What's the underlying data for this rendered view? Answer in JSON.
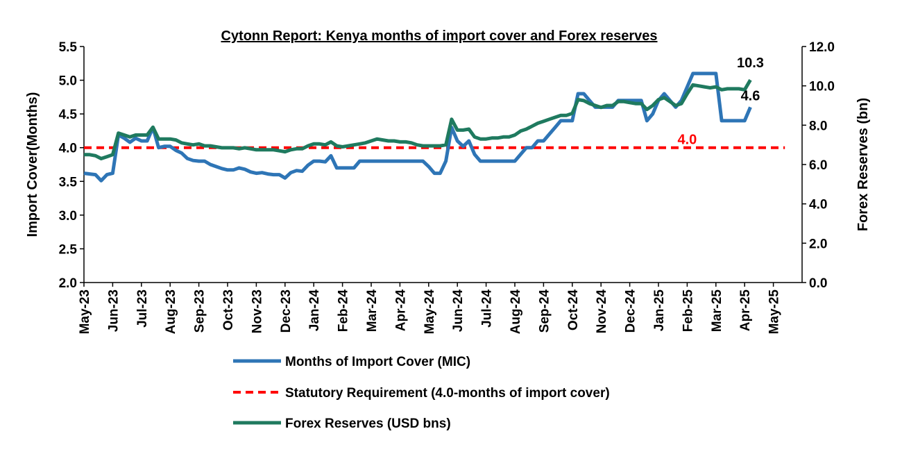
{
  "chart_data": {
    "type": "line",
    "title": "Cytonn Report: Kenya months of import cover and Forex reserves",
    "y_left_label": "Import Cover(Months)",
    "y_right_label": "Forex Reserves (bn)",
    "y_left_range": [
      2.0,
      5.5
    ],
    "y_right_range": [
      0.0,
      12.0
    ],
    "y_left_ticks": [
      "2.0",
      "2.5",
      "3.0",
      "3.5",
      "4.0",
      "4.5",
      "5.0",
      "5.5"
    ],
    "y_right_ticks": [
      "0.0",
      "2.0",
      "4.0",
      "6.0",
      "8.0",
      "10.0",
      "12.0"
    ],
    "x_tick_labels": [
      "May-23",
      "Jun-23",
      "Jul-23",
      "Aug-23",
      "Sep-23",
      "Oct-23",
      "Nov-23",
      "Dec-23",
      "Jan-24",
      "Feb-24",
      "Mar-24",
      "Apr-24",
      "May-24",
      "Jun-24",
      "Jul-24",
      "Aug-24",
      "Sep-24",
      "Oct-24",
      "Nov-24",
      "Dec-24",
      "Jan-25",
      "Feb-25",
      "Mar-25",
      "Apr-25",
      "May-25"
    ],
    "x_ticks_months": [
      0,
      1,
      2,
      3,
      4,
      5,
      6,
      7,
      8,
      9,
      10,
      11,
      12,
      13,
      14,
      15,
      16,
      17,
      18,
      19,
      20,
      21,
      22,
      23,
      24
    ],
    "grid": false,
    "legend_placement": "bottom",
    "series": [
      {
        "name": "Months of Import Cover (MIC)",
        "axis": "left",
        "color": "#2E75B6",
        "style": "solid",
        "points": [
          [
            0.0,
            3.62
          ],
          [
            0.2,
            3.61
          ],
          [
            0.4,
            3.6
          ],
          [
            0.6,
            3.51
          ],
          [
            0.8,
            3.6
          ],
          [
            1.0,
            3.62
          ],
          [
            1.2,
            4.19
          ],
          [
            1.4,
            4.14
          ],
          [
            1.6,
            4.08
          ],
          [
            1.8,
            4.14
          ],
          [
            2.0,
            4.1
          ],
          [
            2.2,
            4.1
          ],
          [
            2.4,
            4.3
          ],
          [
            2.6,
            4.0
          ],
          [
            2.8,
            4.02
          ],
          [
            3.0,
            4.02
          ],
          [
            3.2,
            3.96
          ],
          [
            3.4,
            3.92
          ],
          [
            3.6,
            3.84
          ],
          [
            3.8,
            3.81
          ],
          [
            4.0,
            3.8
          ],
          [
            4.2,
            3.8
          ],
          [
            4.4,
            3.75
          ],
          [
            4.6,
            3.72
          ],
          [
            4.8,
            3.69
          ],
          [
            5.0,
            3.67
          ],
          [
            5.2,
            3.67
          ],
          [
            5.4,
            3.7
          ],
          [
            5.6,
            3.68
          ],
          [
            5.8,
            3.64
          ],
          [
            6.0,
            3.62
          ],
          [
            6.2,
            3.63
          ],
          [
            6.4,
            3.61
          ],
          [
            6.6,
            3.6
          ],
          [
            6.8,
            3.6
          ],
          [
            7.0,
            3.55
          ],
          [
            7.2,
            3.63
          ],
          [
            7.4,
            3.66
          ],
          [
            7.6,
            3.65
          ],
          [
            7.8,
            3.74
          ],
          [
            8.0,
            3.8
          ],
          [
            8.2,
            3.8
          ],
          [
            8.4,
            3.79
          ],
          [
            8.6,
            3.88
          ],
          [
            8.8,
            3.7
          ],
          [
            9.0,
            3.7
          ],
          [
            9.2,
            3.7
          ],
          [
            9.4,
            3.7
          ],
          [
            9.6,
            3.8
          ],
          [
            9.8,
            3.8
          ],
          [
            10.0,
            3.8
          ],
          [
            10.2,
            3.8
          ],
          [
            10.4,
            3.8
          ],
          [
            10.6,
            3.8
          ],
          [
            10.8,
            3.8
          ],
          [
            11.0,
            3.8
          ],
          [
            11.2,
            3.8
          ],
          [
            11.4,
            3.8
          ],
          [
            11.6,
            3.8
          ],
          [
            11.8,
            3.8
          ],
          [
            12.0,
            3.72
          ],
          [
            12.2,
            3.62
          ],
          [
            12.4,
            3.62
          ],
          [
            12.6,
            3.8
          ],
          [
            12.8,
            4.3
          ],
          [
            13.0,
            4.1
          ],
          [
            13.2,
            4.02
          ],
          [
            13.4,
            4.1
          ],
          [
            13.6,
            3.9
          ],
          [
            13.8,
            3.8
          ],
          [
            14.0,
            3.8
          ],
          [
            14.2,
            3.8
          ],
          [
            14.4,
            3.8
          ],
          [
            14.6,
            3.8
          ],
          [
            14.8,
            3.8
          ],
          [
            15.0,
            3.8
          ],
          [
            15.2,
            3.9
          ],
          [
            15.4,
            4.0
          ],
          [
            15.6,
            4.0
          ],
          [
            15.8,
            4.1
          ],
          [
            16.0,
            4.1
          ],
          [
            16.2,
            4.2
          ],
          [
            16.4,
            4.3
          ],
          [
            16.6,
            4.4
          ],
          [
            16.8,
            4.4
          ],
          [
            17.0,
            4.4
          ],
          [
            17.2,
            4.8
          ],
          [
            17.4,
            4.8
          ],
          [
            17.6,
            4.7
          ],
          [
            17.8,
            4.6
          ],
          [
            18.0,
            4.6
          ],
          [
            18.2,
            4.6
          ],
          [
            18.4,
            4.6
          ],
          [
            18.6,
            4.7
          ],
          [
            18.8,
            4.7
          ],
          [
            19.0,
            4.7
          ],
          [
            19.2,
            4.7
          ],
          [
            19.4,
            4.7
          ],
          [
            19.6,
            4.4
          ],
          [
            19.8,
            4.5
          ],
          [
            20.0,
            4.7
          ],
          [
            20.2,
            4.8
          ],
          [
            20.4,
            4.7
          ],
          [
            20.6,
            4.6
          ],
          [
            20.8,
            4.7
          ],
          [
            21.0,
            4.9
          ],
          [
            21.2,
            5.1
          ],
          [
            21.4,
            5.1
          ],
          [
            21.6,
            5.1
          ],
          [
            21.8,
            5.1
          ],
          [
            22.0,
            5.1
          ],
          [
            22.2,
            4.4
          ],
          [
            22.4,
            4.4
          ],
          [
            22.6,
            4.4
          ],
          [
            22.8,
            4.4
          ],
          [
            23.0,
            4.4
          ],
          [
            23.2,
            4.6
          ]
        ]
      },
      {
        "name": "Statutory Requirement (4.0-months of import cover)",
        "axis": "left",
        "color": "#FF0000",
        "style": "dashed",
        "points": [
          [
            0.0,
            4.0
          ],
          [
            24.4,
            4.0
          ]
        ]
      },
      {
        "name": "Forex Reserves (USD bns)",
        "axis": "right",
        "color": "#1F7A5F",
        "style": "solid",
        "points": [
          [
            0.0,
            6.5
          ],
          [
            0.2,
            6.5
          ],
          [
            0.4,
            6.45
          ],
          [
            0.6,
            6.3
          ],
          [
            0.8,
            6.4
          ],
          [
            1.0,
            6.5
          ],
          [
            1.2,
            7.6
          ],
          [
            1.4,
            7.5
          ],
          [
            1.6,
            7.4
          ],
          [
            1.8,
            7.5
          ],
          [
            2.0,
            7.5
          ],
          [
            2.2,
            7.5
          ],
          [
            2.4,
            7.9
          ],
          [
            2.6,
            7.3
          ],
          [
            2.8,
            7.3
          ],
          [
            3.0,
            7.3
          ],
          [
            3.2,
            7.25
          ],
          [
            3.4,
            7.1
          ],
          [
            3.6,
            7.05
          ],
          [
            3.8,
            7.0
          ],
          [
            4.0,
            7.05
          ],
          [
            4.2,
            6.95
          ],
          [
            4.4,
            6.95
          ],
          [
            4.6,
            6.9
          ],
          [
            4.8,
            6.85
          ],
          [
            5.0,
            6.85
          ],
          [
            5.2,
            6.85
          ],
          [
            5.4,
            6.8
          ],
          [
            5.6,
            6.85
          ],
          [
            5.8,
            6.8
          ],
          [
            6.0,
            6.75
          ],
          [
            6.2,
            6.75
          ],
          [
            6.4,
            6.75
          ],
          [
            6.6,
            6.75
          ],
          [
            6.8,
            6.7
          ],
          [
            7.0,
            6.65
          ],
          [
            7.2,
            6.75
          ],
          [
            7.4,
            6.8
          ],
          [
            7.6,
            6.8
          ],
          [
            7.8,
            6.95
          ],
          [
            8.0,
            7.05
          ],
          [
            8.2,
            7.05
          ],
          [
            8.4,
            7.0
          ],
          [
            8.6,
            7.15
          ],
          [
            8.8,
            6.95
          ],
          [
            9.0,
            6.9
          ],
          [
            9.2,
            6.95
          ],
          [
            9.4,
            7.0
          ],
          [
            9.6,
            7.05
          ],
          [
            9.8,
            7.1
          ],
          [
            10.0,
            7.2
          ],
          [
            10.2,
            7.3
          ],
          [
            10.4,
            7.25
          ],
          [
            10.6,
            7.2
          ],
          [
            10.8,
            7.2
          ],
          [
            11.0,
            7.15
          ],
          [
            11.2,
            7.15
          ],
          [
            11.4,
            7.1
          ],
          [
            11.6,
            7.0
          ],
          [
            11.8,
            6.95
          ],
          [
            12.0,
            6.95
          ],
          [
            12.2,
            6.95
          ],
          [
            12.4,
            6.95
          ],
          [
            12.6,
            7.0
          ],
          [
            12.8,
            8.3
          ],
          [
            13.0,
            7.75
          ],
          [
            13.2,
            7.75
          ],
          [
            13.4,
            7.8
          ],
          [
            13.6,
            7.4
          ],
          [
            13.8,
            7.3
          ],
          [
            14.0,
            7.3
          ],
          [
            14.2,
            7.35
          ],
          [
            14.4,
            7.35
          ],
          [
            14.6,
            7.4
          ],
          [
            14.8,
            7.4
          ],
          [
            15.0,
            7.5
          ],
          [
            15.2,
            7.7
          ],
          [
            15.4,
            7.8
          ],
          [
            15.6,
            7.95
          ],
          [
            15.8,
            8.1
          ],
          [
            16.0,
            8.2
          ],
          [
            16.2,
            8.3
          ],
          [
            16.4,
            8.4
          ],
          [
            16.6,
            8.5
          ],
          [
            16.8,
            8.5
          ],
          [
            17.0,
            8.6
          ],
          [
            17.2,
            9.3
          ],
          [
            17.4,
            9.25
          ],
          [
            17.6,
            9.1
          ],
          [
            17.8,
            9.0
          ],
          [
            18.0,
            8.9
          ],
          [
            18.2,
            9.0
          ],
          [
            18.4,
            9.0
          ],
          [
            18.6,
            9.2
          ],
          [
            18.8,
            9.2
          ],
          [
            19.0,
            9.15
          ],
          [
            19.2,
            9.1
          ],
          [
            19.4,
            9.1
          ],
          [
            19.6,
            8.8
          ],
          [
            19.8,
            9.0
          ],
          [
            20.0,
            9.3
          ],
          [
            20.2,
            9.4
          ],
          [
            20.4,
            9.2
          ],
          [
            20.6,
            9.0
          ],
          [
            20.8,
            9.1
          ],
          [
            21.0,
            9.6
          ],
          [
            21.2,
            10.05
          ],
          [
            21.4,
            10.0
          ],
          [
            21.6,
            9.95
          ],
          [
            21.8,
            9.9
          ],
          [
            22.0,
            9.95
          ],
          [
            22.2,
            9.8
          ],
          [
            22.4,
            9.85
          ],
          [
            22.6,
            9.85
          ],
          [
            22.8,
            9.85
          ],
          [
            23.0,
            9.8
          ],
          [
            23.2,
            10.3
          ]
        ]
      }
    ],
    "annotations": [
      {
        "text": "10.3",
        "series": "Forex Reserves (USD bns)",
        "x": 23.2,
        "y": 10.3
      },
      {
        "text": "4.6",
        "series": "Months of Import Cover (MIC)",
        "x": 23.2,
        "y": 4.6
      },
      {
        "text": "4.0",
        "series": "Statutory Requirement (4.0-months of import cover)",
        "x": 21.0,
        "y": 4.0
      }
    ]
  }
}
